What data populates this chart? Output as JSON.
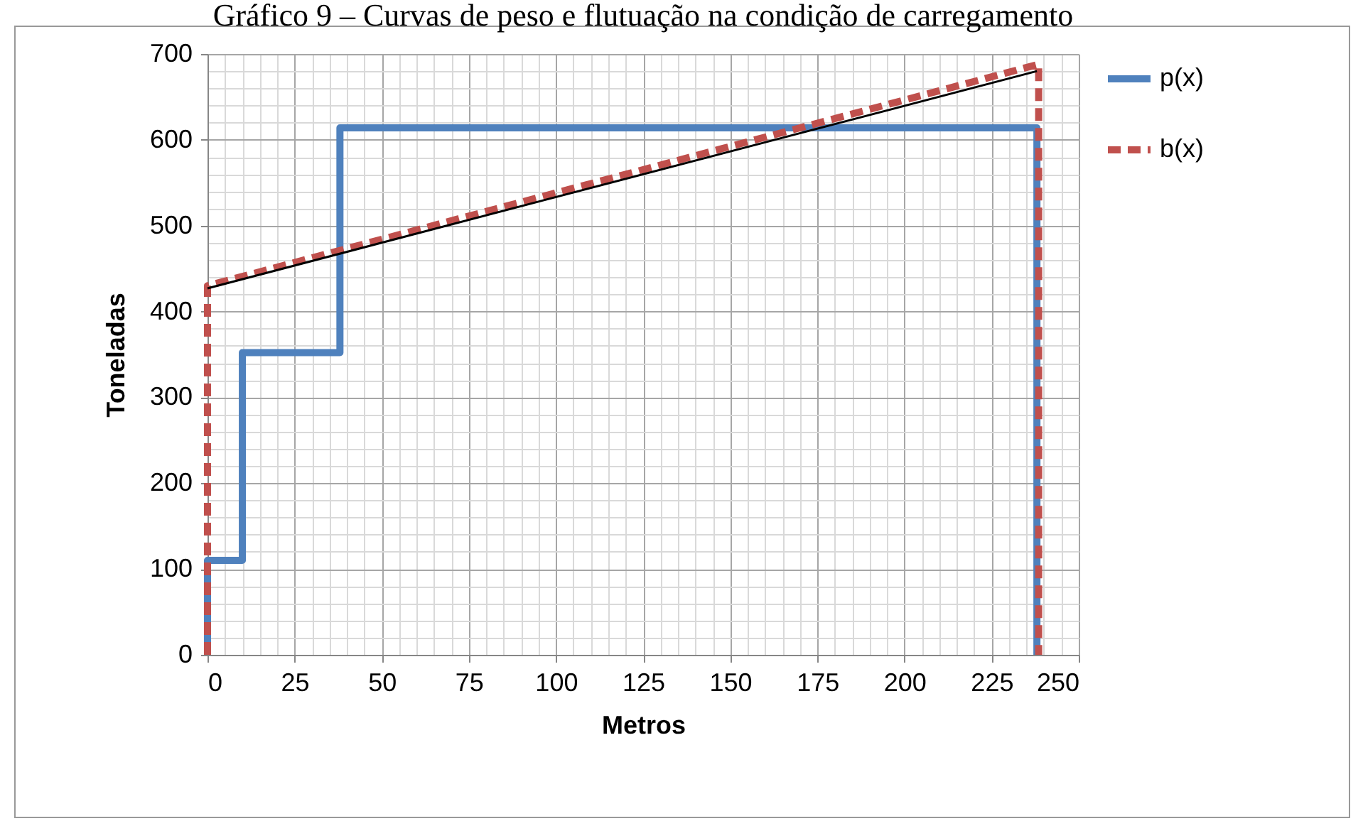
{
  "chart_data": {
    "type": "line",
    "title": "Gráfico 9 – Curvas de peso e flutuação na condição de carregamento",
    "xlabel": "Metros",
    "ylabel": "Toneladas",
    "series": [
      {
        "name": "p(x)",
        "color": "#4f81bd",
        "line_style": "solid",
        "x": [
          0,
          0,
          10,
          10,
          38,
          38,
          238,
          238
        ],
        "values": [
          0,
          110,
          110,
          352,
          352,
          614,
          614,
          0
        ]
      },
      {
        "name": "b(x)",
        "color": "#c0504d",
        "line_style": "dashed",
        "x": [
          0,
          0,
          238.5,
          238.5
        ],
        "values": [
          0,
          430,
          688,
          0
        ]
      },
      {
        "color": "#000000",
        "line_style": "solid",
        "x": [
          0,
          238
        ],
        "values": [
          427,
          680
        ]
      }
    ],
    "xlim": [
      0,
      250
    ],
    "xticks": [
      0,
      25,
      50,
      75,
      100,
      125,
      150,
      175,
      200,
      225,
      250
    ],
    "ylim": [
      0,
      700
    ],
    "yticks": [
      0,
      100,
      200,
      300,
      400,
      500,
      600,
      700
    ],
    "grid": true,
    "legend": "right",
    "marker": "none"
  }
}
